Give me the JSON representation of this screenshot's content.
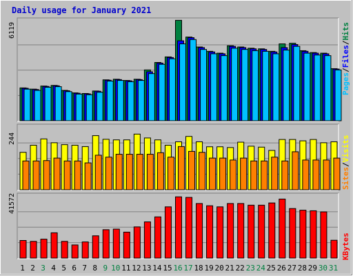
{
  "title": "Daily usage for January 2021",
  "colors": {
    "title": "#0000cc",
    "hits": "#008040",
    "files": "#0000ff",
    "pages": "#00c0ff",
    "visits": "#ffff00",
    "sites": "#ff8000",
    "kbytes": "#ff0000",
    "weekend": "#008040",
    "weekday": "#000000"
  },
  "right_labels": {
    "top": [
      "Pages",
      "/",
      "Files",
      "/",
      "Hits"
    ],
    "middle": [
      "Sites",
      "/",
      "Visits"
    ],
    "bottom": [
      "KBytes"
    ]
  },
  "chart_data": {
    "type": "bar",
    "days": [
      "1",
      "2",
      "3",
      "4",
      "5",
      "6",
      "7",
      "8",
      "9",
      "10",
      "11",
      "12",
      "13",
      "14",
      "15",
      "16",
      "17",
      "18",
      "19",
      "20",
      "21",
      "22",
      "23",
      "24",
      "25",
      "26",
      "27",
      "28",
      "29",
      "30",
      "31"
    ],
    "weekend_days": [
      "3",
      "9",
      "10",
      "16",
      "17",
      "23",
      "24",
      "30",
      "31"
    ],
    "panels": [
      {
        "id": "requests",
        "ymax_label": "6119",
        "ymax": 6119,
        "series": [
          {
            "name": "Hits",
            "values": [
              2650,
              2550,
              2800,
              2850,
              2450,
              2250,
              2200,
              2400,
              3300,
              3350,
              3250,
              3350,
              4100,
              4700,
              5150,
              8100,
              6750,
              5950,
              5600,
              5450,
              6050,
              5950,
              5850,
              5800,
              5600,
              6200,
              6250,
              5650,
              5500,
              5450,
              4200
            ]
          },
          {
            "name": "Files",
            "values": [
              2620,
              2520,
              2770,
              2820,
              2420,
              2220,
              2170,
              2380,
              3270,
              3320,
              3220,
              3320,
              3950,
              4650,
              5100,
              6450,
              6700,
              5900,
              5550,
              5400,
              6000,
              5900,
              5800,
              5750,
              5550,
              5900,
              6150,
              5600,
              5450,
              5400,
              4170
            ]
          },
          {
            "name": "Pages",
            "values": [
              2550,
              2450,
              2700,
              2750,
              2350,
              2150,
              2100,
              2300,
              3200,
              3250,
              3150,
              3250,
              3800,
              4550,
              5000,
              6200,
              6550,
              5750,
              5400,
              5250,
              5850,
              5750,
              5650,
              5600,
              5400,
              5700,
              6000,
              5450,
              5300,
              5250,
              4100
            ]
          }
        ]
      },
      {
        "id": "visitors",
        "ymax_label": "244",
        "ymax": 244,
        "series": [
          {
            "name": "Visits",
            "values": [
              195,
              232,
              265,
              245,
              235,
              232,
              225,
              282,
              263,
              260,
              260,
              290,
              270,
              260,
              232,
              250,
              278,
              250,
              224,
              224,
              220,
              248,
              227,
              222,
              205,
              262,
              262,
              255,
              262,
              245,
              250
            ]
          },
          {
            "name": "Sites",
            "values": [
              150,
              150,
              152,
              165,
              150,
              150,
              140,
              180,
              170,
              185,
              185,
              185,
              185,
              193,
              170,
              225,
              200,
              195,
              165,
              165,
              155,
              165,
              150,
              150,
              170,
              150,
              198,
              155,
              155,
              155,
              165
            ]
          }
        ]
      },
      {
        "id": "traffic",
        "ymax_label": "41572",
        "ymax": 41572,
        "series": [
          {
            "name": "KBytes",
            "values": [
              15800,
              15000,
              17000,
              22700,
              15000,
              11800,
              14500,
              20000,
              25500,
              26000,
              23300,
              28000,
              32500,
              37000,
              46000,
              55000,
              54500,
              49000,
              47000,
              46000,
              49000,
              49000,
              47500,
              47500,
              49500,
              53000,
              44500,
              43000,
              42500,
              41500,
              16000
            ]
          }
        ]
      }
    ]
  }
}
